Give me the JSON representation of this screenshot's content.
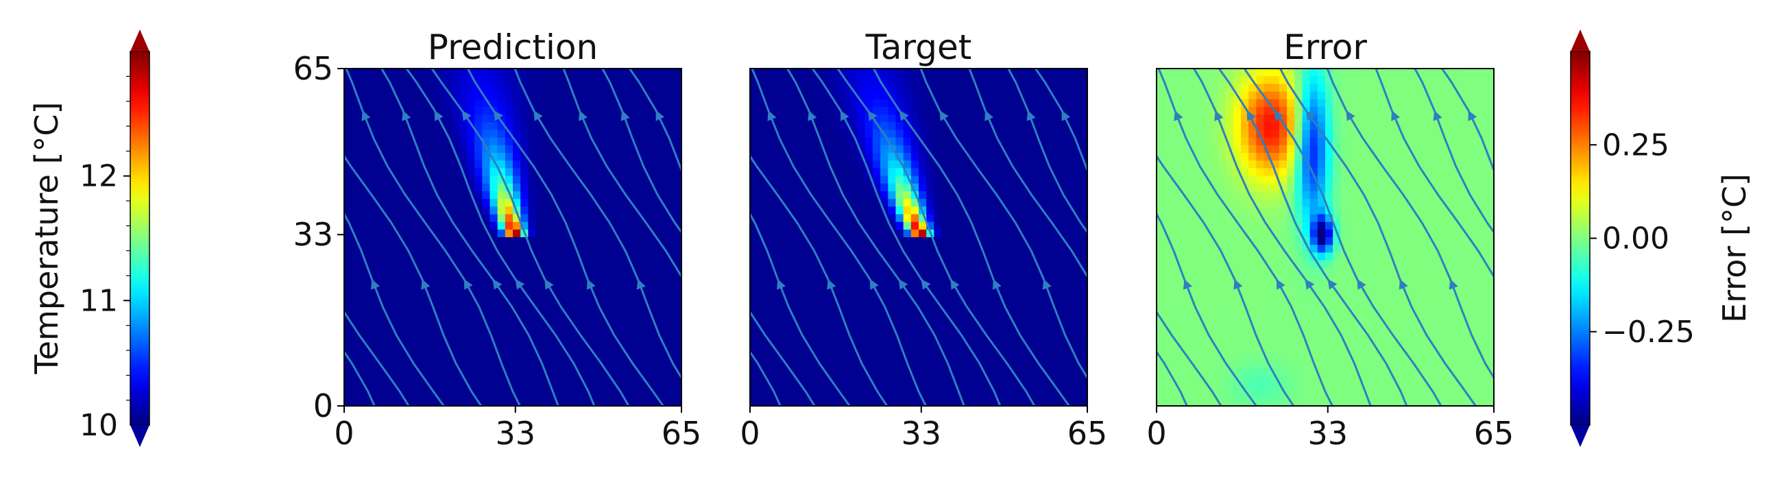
{
  "chart_data": [
    {
      "type": "heatmap",
      "title": "Prediction",
      "x_ticks": [
        "0",
        "33",
        "65"
      ],
      "y_ticks": [
        "0",
        "33",
        "65"
      ],
      "xlim": [
        0,
        65
      ],
      "ylim": [
        0,
        65
      ],
      "field": "temperature",
      "plume": {
        "source_x": 33,
        "source_y": 33,
        "top_x": 26,
        "top_y": 65,
        "peak_value": 13.0,
        "background_value": 10.05
      },
      "streamlines": true
    },
    {
      "type": "heatmap",
      "title": "Target",
      "x_ticks": [
        "0",
        "33",
        "65"
      ],
      "y_ticks": [],
      "xlim": [
        0,
        65
      ],
      "ylim": [
        0,
        65
      ],
      "field": "temperature",
      "plume": {
        "source_x": 33,
        "source_y": 33,
        "top_x": 23,
        "top_y": 65,
        "peak_value": 13.0,
        "background_value": 10.05
      },
      "streamlines": true
    },
    {
      "type": "heatmap",
      "title": "Error",
      "x_ticks": [
        "0",
        "33",
        "65"
      ],
      "y_ticks": [],
      "xlim": [
        0,
        65
      ],
      "ylim": [
        0,
        65
      ],
      "field": "error",
      "error_regions": [
        {
          "x": 22,
          "y": 54,
          "value": 0.36
        },
        {
          "x": 30,
          "y": 50,
          "value": -0.38
        },
        {
          "x": 32,
          "y": 33,
          "value": -0.5
        },
        {
          "x": 20,
          "y": 4,
          "value": -0.05
        }
      ],
      "background_value": 0.0,
      "streamlines": true
    }
  ],
  "colorbars": {
    "temperature": {
      "label": "Temperature [°C]",
      "range": [
        10,
        13.0
      ],
      "ticks": [
        "10",
        "11",
        "12"
      ],
      "tick_values": [
        10,
        11,
        12
      ]
    },
    "error": {
      "label": "Error [°C]",
      "range": [
        -0.5,
        0.5
      ],
      "ticks": [
        "−0.25",
        "0.00",
        "0.25"
      ],
      "tick_values": [
        -0.25,
        0.0,
        0.25
      ]
    }
  },
  "colors": {
    "streamline": "#2f7fc1",
    "frame": "#000000"
  }
}
